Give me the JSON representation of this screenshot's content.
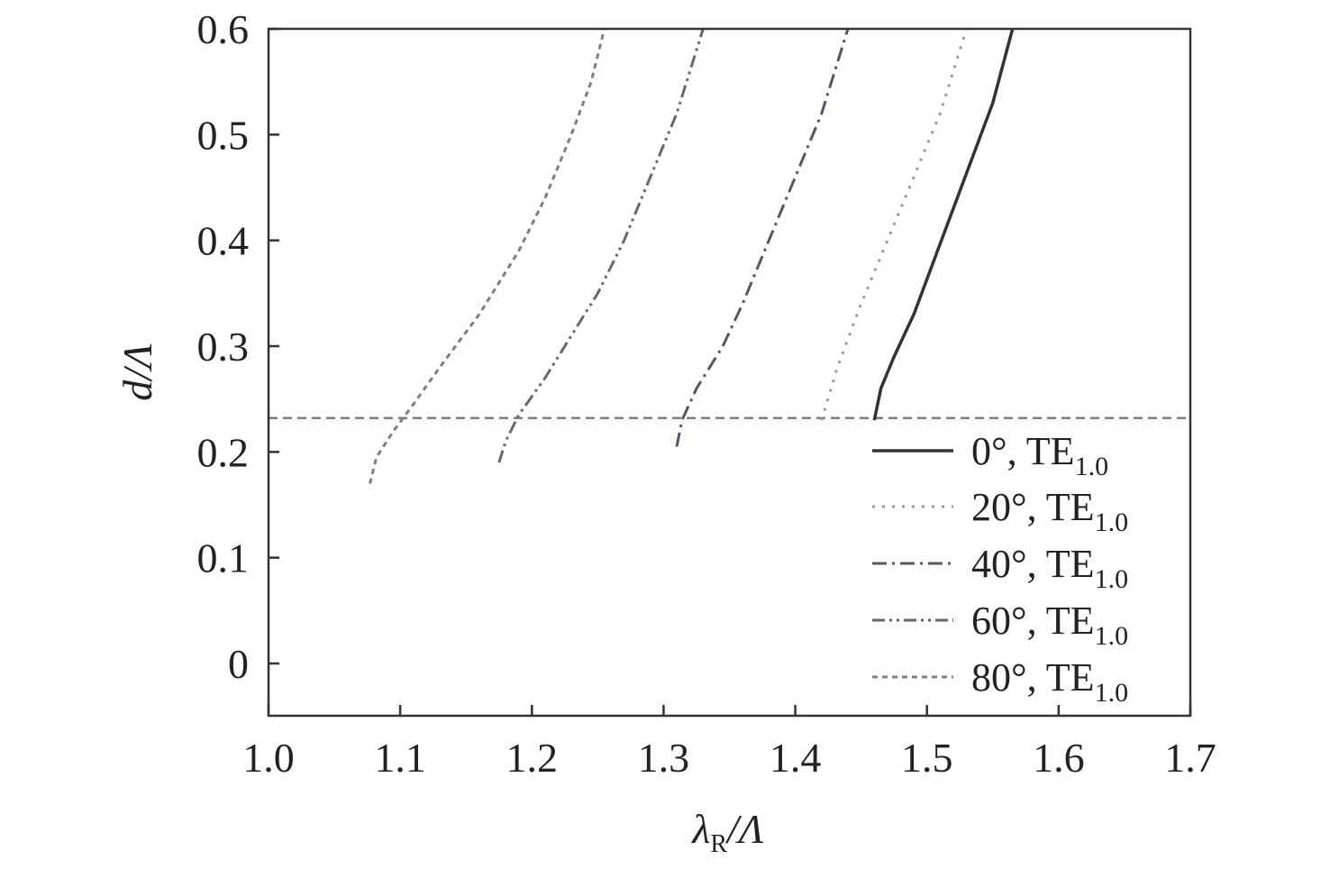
{
  "chart_data": {
    "type": "line",
    "xlabel_main": "λ",
    "xlabel_sub": "R",
    "xlabel_tail": "/Λ",
    "ylabel": "d/Λ",
    "xlim": [
      1.0,
      1.7
    ],
    "ylim": [
      -0.05,
      0.6
    ],
    "xticks": [
      1.0,
      1.1,
      1.2,
      1.3,
      1.4,
      1.5,
      1.6,
      1.7
    ],
    "xtick_labels": [
      "1.0",
      "1.1",
      "1.2",
      "1.3",
      "1.4",
      "1.5",
      "1.6",
      "1.7"
    ],
    "yticks": [
      0,
      0.1,
      0.2,
      0.3,
      0.4,
      0.5,
      0.6
    ],
    "ytick_labels": [
      "0",
      "0.1",
      "0.2",
      "0.3",
      "0.4",
      "0.5",
      "0.6"
    ],
    "reference_line": {
      "y": 0.232,
      "style": "dashed",
      "color": "#8a7a80"
    },
    "legend_position": "bottom-right",
    "series": [
      {
        "name": "0°, TE",
        "sub": "1.0",
        "style": "solid",
        "color": "#333333",
        "points": [
          [
            1.46,
            0.23
          ],
          [
            1.465,
            0.26
          ],
          [
            1.475,
            0.29
          ],
          [
            1.49,
            0.33
          ],
          [
            1.505,
            0.38
          ],
          [
            1.52,
            0.43
          ],
          [
            1.535,
            0.48
          ],
          [
            1.55,
            0.53
          ],
          [
            1.565,
            0.6
          ]
        ]
      },
      {
        "name": "20°, TE",
        "sub": "1.0",
        "style": "dotted",
        "color": "#999999",
        "points": [
          [
            1.42,
            0.23
          ],
          [
            1.432,
            0.28
          ],
          [
            1.45,
            0.34
          ],
          [
            1.47,
            0.4
          ],
          [
            1.49,
            0.46
          ],
          [
            1.51,
            0.52
          ],
          [
            1.53,
            0.6
          ]
        ]
      },
      {
        "name": "40°, TE",
        "sub": "1.0",
        "style": "dashdot",
        "color": "#555566",
        "points": [
          [
            1.31,
            0.205
          ],
          [
            1.314,
            0.23
          ],
          [
            1.325,
            0.26
          ],
          [
            1.345,
            0.3
          ],
          [
            1.36,
            0.34
          ],
          [
            1.38,
            0.4
          ],
          [
            1.4,
            0.46
          ],
          [
            1.42,
            0.52
          ],
          [
            1.44,
            0.6
          ]
        ]
      },
      {
        "name": "60°, TE",
        "sub": "1.0",
        "style": "dashdotdot",
        "color": "#666677",
        "points": [
          [
            1.175,
            0.19
          ],
          [
            1.18,
            0.21
          ],
          [
            1.19,
            0.235
          ],
          [
            1.21,
            0.27
          ],
          [
            1.23,
            0.31
          ],
          [
            1.25,
            0.35
          ],
          [
            1.27,
            0.4
          ],
          [
            1.29,
            0.46
          ],
          [
            1.31,
            0.52
          ],
          [
            1.33,
            0.6
          ]
        ]
      },
      {
        "name": "80°, TE",
        "sub": "1.0",
        "style": "dashed-fine",
        "color": "#887788",
        "points": [
          [
            1.077,
            0.17
          ],
          [
            1.082,
            0.195
          ],
          [
            1.095,
            0.22
          ],
          [
            1.11,
            0.245
          ],
          [
            1.13,
            0.28
          ],
          [
            1.16,
            0.33
          ],
          [
            1.19,
            0.39
          ],
          [
            1.21,
            0.44
          ],
          [
            1.23,
            0.5
          ],
          [
            1.245,
            0.55
          ],
          [
            1.255,
            0.6
          ]
        ]
      }
    ]
  }
}
